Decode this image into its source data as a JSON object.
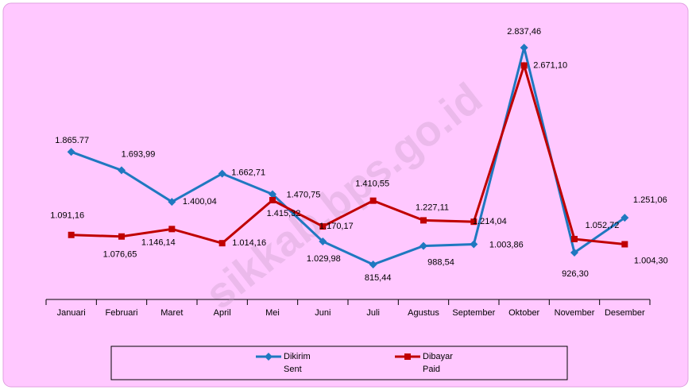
{
  "chart_data": {
    "type": "line",
    "categories": [
      "Januari",
      "Februari",
      "Maret",
      "April",
      "Mei",
      "Juni",
      "Juli",
      "Agustus",
      "September",
      "Oktober",
      "November",
      "Desember"
    ],
    "series": [
      {
        "name": "Dikirim",
        "name_en": "Sent",
        "color": "#1f78c0",
        "marker": "diamond",
        "values": [
          1865.77,
          1693.99,
          1400.04,
          1662.71,
          1470.75,
          1029.98,
          815.44,
          988.54,
          1003.86,
          2837.46,
          926.3,
          1251.06
        ],
        "value_labels": [
          "1.865.77",
          "1.693,99",
          "1.400,04",
          "1.662,71",
          "1.470,75",
          "1.029,98",
          "815,44",
          "988,54",
          "1.003,86",
          "2.837,46",
          "926,30",
          "1.251,06"
        ]
      },
      {
        "name": "Dibayar",
        "name_en": "Paid",
        "color": "#c00000",
        "marker": "square",
        "values": [
          1091.16,
          1076.65,
          1146.14,
          1014.16,
          1415.32,
          1170.17,
          1410.55,
          1227.11,
          1214.04,
          2671.1,
          1052.72,
          1004.3
        ],
        "value_labels": [
          "1.091,16",
          "1.076,65",
          "1.146,14",
          "1.014,16",
          "1.415,32",
          "1.170,17",
          "1.410,55",
          "1.227,11",
          "1.214,04",
          "2.671,10",
          "1.052,72",
          "1.004,30"
        ]
      }
    ],
    "watermark": "sikkab.bps.go.id"
  }
}
